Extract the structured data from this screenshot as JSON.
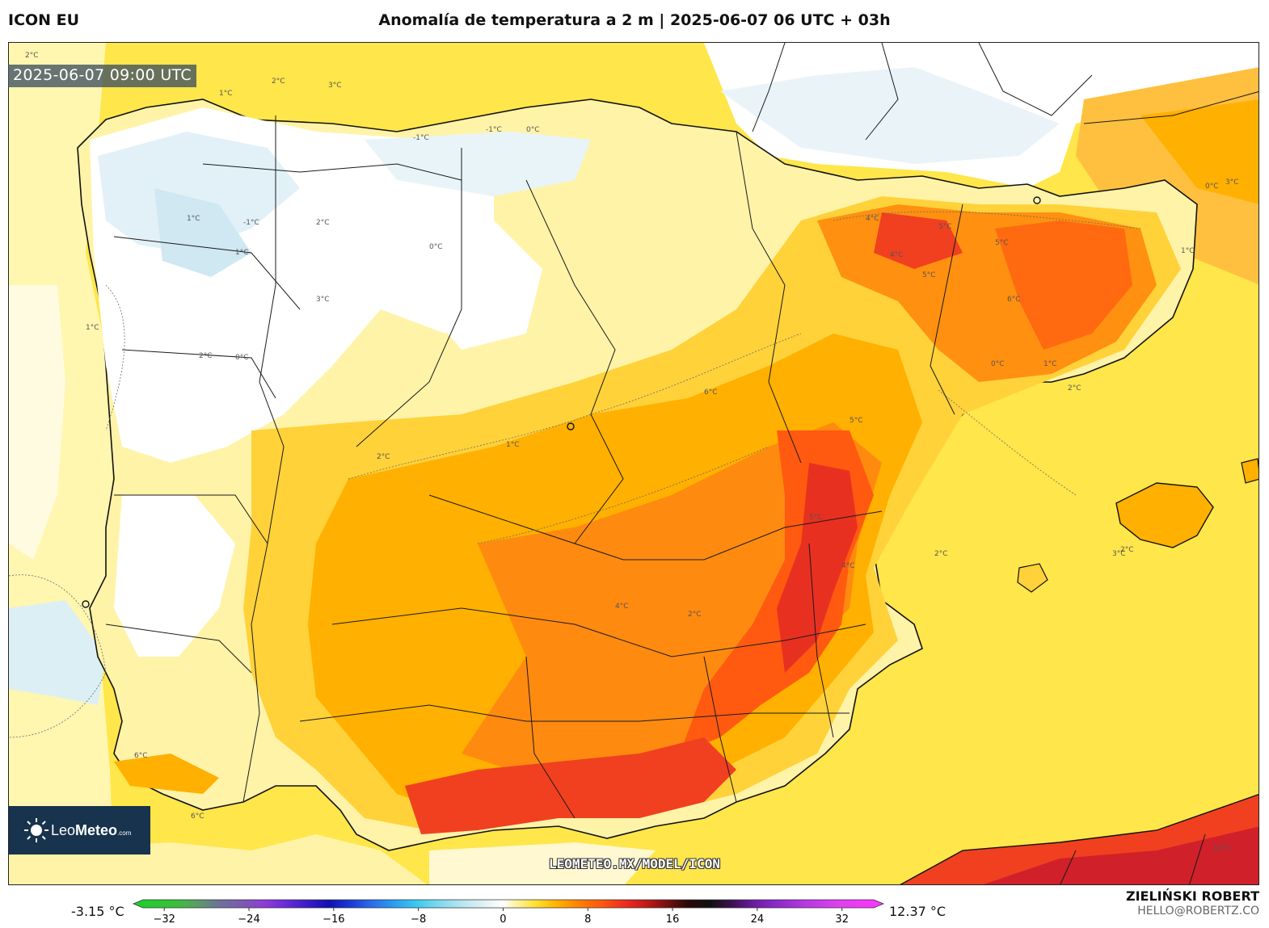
{
  "header": {
    "model": "ICON EU",
    "title": "Anomalía de temperatura a 2 m | 2025-06-07 06 UTC + 03h"
  },
  "map": {
    "valid_time": "2025-06-07 09:00 UTC",
    "watermark": "LEOMETEO.MX/MODEL/ICON",
    "contour_labels": [
      "2°C",
      "2°C",
      "3°C",
      "1°C",
      "-1°C",
      "-1°C",
      "0°C",
      "1°C",
      "-1°C",
      "1°C",
      "2°C",
      "0°C",
      "1°C",
      "2°C",
      "0°C",
      "3°C",
      "4°C",
      "5°C",
      "4°C",
      "5°C",
      "6°C",
      "5°C",
      "6°C",
      "5°C",
      "4°C",
      "2°C",
      "2°C",
      "1°C",
      "0°C",
      "3°C",
      "4°C",
      "5°C",
      "2°C",
      "2°C",
      "6°C",
      "10°C",
      "6°C",
      "1°C",
      "1°C",
      "0°C",
      "2°C",
      "3°C"
    ],
    "region": "Iberian Peninsula and Balearic Islands"
  },
  "logo": {
    "brand_light": "Leo",
    "brand_bold": "Meteo",
    "suffix": ".com"
  },
  "colorbar": {
    "min_label": "-3.15 °C",
    "max_label": "12.37 °C",
    "ticks": [
      "−32",
      "−24",
      "−16",
      "−8",
      "0",
      "8",
      "16",
      "24",
      "32"
    ],
    "tick_values": [
      -32,
      -24,
      -16,
      -8,
      0,
      8,
      16,
      24,
      32
    ],
    "range": [
      -34,
      35
    ],
    "stops": [
      {
        "v": -34,
        "c": "#1bd12a"
      },
      {
        "v": -30,
        "c": "#3bbf3b"
      },
      {
        "v": -28,
        "c": "#5b9a6a"
      },
      {
        "v": -26,
        "c": "#6f6f9a"
      },
      {
        "v": -24,
        "c": "#7a5ab0"
      },
      {
        "v": -22,
        "c": "#8f3cd6"
      },
      {
        "v": -20,
        "c": "#6a2ad8"
      },
      {
        "v": -18,
        "c": "#3a1ec8"
      },
      {
        "v": -16,
        "c": "#1010b0"
      },
      {
        "v": -14,
        "c": "#1a3ad8"
      },
      {
        "v": -12,
        "c": "#2a6ee8"
      },
      {
        "v": -10,
        "c": "#2a9ef0"
      },
      {
        "v": -8,
        "c": "#3ac8f0"
      },
      {
        "v": -6,
        "c": "#7ad8f0"
      },
      {
        "v": -4,
        "c": "#b0e4f2"
      },
      {
        "v": -2,
        "c": "#dceff5"
      },
      {
        "v": 0,
        "c": "#ffffff"
      },
      {
        "v": 1,
        "c": "#fff6b0"
      },
      {
        "v": 3,
        "c": "#ffe030"
      },
      {
        "v": 5,
        "c": "#ffb000"
      },
      {
        "v": 7,
        "c": "#ff8000"
      },
      {
        "v": 9,
        "c": "#ff5a10"
      },
      {
        "v": 11,
        "c": "#f03020"
      },
      {
        "v": 13,
        "c": "#c81a1a"
      },
      {
        "v": 15,
        "c": "#7a1010"
      },
      {
        "v": 17,
        "c": "#2a0808"
      },
      {
        "v": 19,
        "c": "#101010"
      },
      {
        "v": 21,
        "c": "#3a1050"
      },
      {
        "v": 23,
        "c": "#6a1aa0"
      },
      {
        "v": 25,
        "c": "#8a28c8"
      },
      {
        "v": 28,
        "c": "#b83ae0"
      },
      {
        "v": 31,
        "c": "#e040f0"
      },
      {
        "v": 35,
        "c": "#ff33ff"
      }
    ]
  },
  "author": {
    "name": "ZIELIŃSKI ROBERT",
    "email": "HELLO@ROBERTZ.CO"
  },
  "colors": {
    "neg_light": "#dceff5",
    "zero": "#ffffff",
    "pale_yellow": "#fff6b0",
    "yellow": "#ffe030",
    "orange": "#ffb000",
    "dark_orange": "#ff8000",
    "red": "#f03020",
    "logo_bg": "#17334d"
  }
}
